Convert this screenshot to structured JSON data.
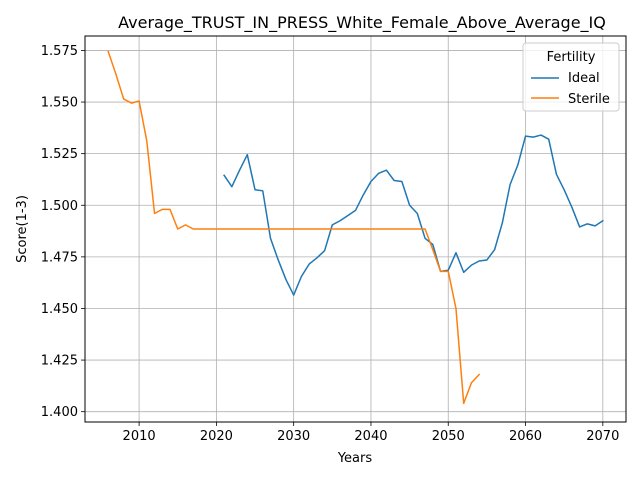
{
  "chart_data": {
    "type": "line",
    "title": "Average_TRUST_IN_PRESS_White_Female_Above_Average_IQ",
    "xlabel": "Years",
    "ylabel": "Score(1-3)",
    "xlim": [
      2003,
      2073
    ],
    "ylim": [
      1.395,
      1.582
    ],
    "xticks": [
      2010,
      2020,
      2030,
      2040,
      2050,
      2060,
      2070
    ],
    "yticks": [
      1.4,
      1.425,
      1.45,
      1.475,
      1.5,
      1.525,
      1.55,
      1.575
    ],
    "xtick_labels": [
      "2010",
      "2020",
      "2030",
      "2040",
      "2050",
      "2060",
      "2070"
    ],
    "ytick_labels": [
      "1.400",
      "1.425",
      "1.450",
      "1.475",
      "1.500",
      "1.525",
      "1.550",
      "1.575"
    ],
    "grid": true,
    "legend": {
      "title": "Fertility",
      "position": "top-right"
    },
    "series": [
      {
        "name": "Ideal",
        "color": "#1f77b4",
        "x": [
          2021,
          2022,
          2023,
          2024,
          2025,
          2026,
          2027,
          2028,
          2029,
          2030,
          2031,
          2032,
          2033,
          2034,
          2035,
          2036,
          2037,
          2038,
          2039,
          2040,
          2041,
          2042,
          2043,
          2044,
          2045,
          2046,
          2047,
          2048,
          2049,
          2050,
          2051,
          2052,
          2053,
          2054,
          2055,
          2056,
          2057,
          2058,
          2059,
          2060,
          2061,
          2062,
          2063,
          2064,
          2065,
          2066,
          2067,
          2068,
          2069,
          2070
        ],
        "y": [
          1.5145,
          1.509,
          1.517,
          1.5245,
          1.5075,
          1.507,
          1.484,
          1.4735,
          1.464,
          1.4565,
          1.4655,
          1.4715,
          1.4745,
          1.478,
          1.4905,
          1.4925,
          1.495,
          1.4975,
          1.505,
          1.5115,
          1.5155,
          1.517,
          1.512,
          1.5115,
          1.5,
          1.496,
          1.484,
          1.481,
          1.468,
          1.4685,
          1.477,
          1.4675,
          1.471,
          1.473,
          1.4735,
          1.4785,
          1.4915,
          1.51,
          1.5195,
          1.5335,
          1.533,
          1.534,
          1.532,
          1.515,
          1.5075,
          1.499,
          1.4895,
          1.491,
          1.49,
          1.4925
        ]
      },
      {
        "name": "Sterile",
        "color": "#ff7f0e",
        "x": [
          2006,
          2007,
          2008,
          2009,
          2010,
          2011,
          2012,
          2013,
          2014,
          2015,
          2016,
          2017,
          2018,
          2019,
          2020,
          2021,
          2022,
          2023,
          2024,
          2025,
          2026,
          2027,
          2028,
          2029,
          2030,
          2031,
          2032,
          2033,
          2034,
          2035,
          2036,
          2037,
          2038,
          2039,
          2040,
          2041,
          2042,
          2043,
          2044,
          2045,
          2046,
          2047,
          2048,
          2049,
          2050,
          2051,
          2052,
          2053,
          2054
        ],
        "y": [
          1.5745,
          1.5635,
          1.5515,
          1.5495,
          1.5505,
          1.531,
          1.496,
          1.498,
          1.498,
          1.4885,
          1.4905,
          1.4885,
          1.4885,
          1.4885,
          1.4885,
          1.4885,
          1.4885,
          1.4885,
          1.4885,
          1.4885,
          1.4885,
          1.4885,
          1.4885,
          1.4885,
          1.4885,
          1.4885,
          1.4885,
          1.4885,
          1.4885,
          1.4885,
          1.4885,
          1.4885,
          1.4885,
          1.4885,
          1.4885,
          1.4885,
          1.4885,
          1.4885,
          1.4885,
          1.4885,
          1.4885,
          1.4885,
          1.4785,
          1.468,
          1.468,
          1.45,
          1.404,
          1.414,
          1.418
        ]
      }
    ]
  }
}
